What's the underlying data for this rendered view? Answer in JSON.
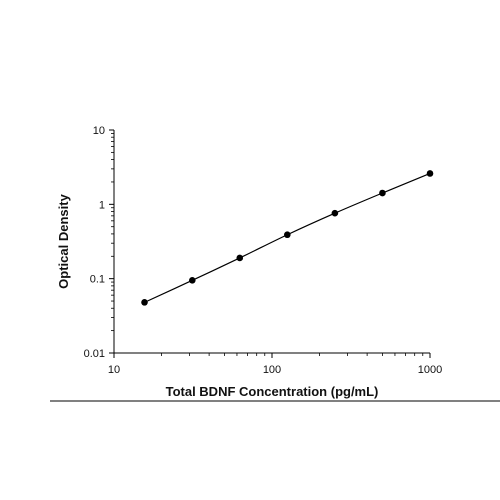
{
  "chart_data": {
    "type": "scatter",
    "xlabel": "Total BDNF Concentration (pg/mL)",
    "ylabel": "Optical Density",
    "x_scale": "log",
    "y_scale": "log",
    "xlim": [
      10,
      1000
    ],
    "ylim": [
      0.01,
      10
    ],
    "x_ticks": [
      "10",
      "100",
      "1000"
    ],
    "y_ticks": [
      "10",
      "1",
      "0.1",
      "0.01"
    ],
    "grid": false,
    "series": [
      {
        "x": [
          15.6,
          31.3,
          62.5,
          125,
          250,
          500,
          1000
        ],
        "y": [
          0.048,
          0.095,
          0.19,
          0.39,
          0.76,
          1.42,
          2.6
        ],
        "marker": "circle",
        "line": "fitted-curve",
        "color": "#000000"
      }
    ]
  }
}
